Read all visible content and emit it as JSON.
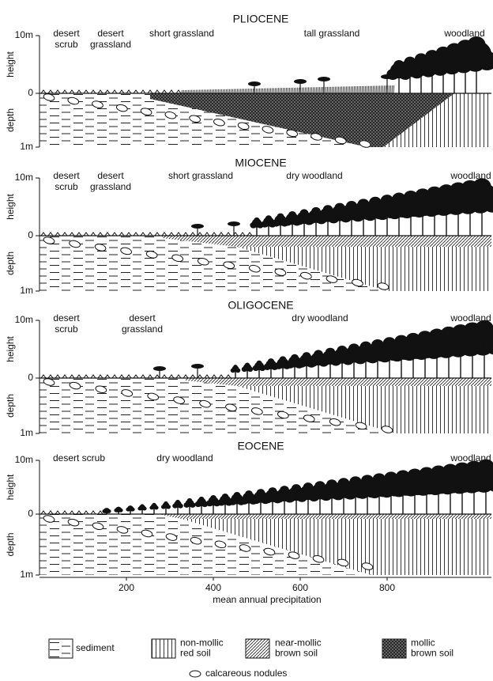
{
  "panels": [
    {
      "title": "PLIOCENE",
      "y_labels": {
        "top": "10m",
        "zero": "0",
        "bottom": "1m"
      },
      "axis_labels": {
        "upper": "height",
        "lower": "depth"
      },
      "vegetation": [
        [
          "desert",
          "scrub"
        ],
        [
          "desert",
          "grassland"
        ],
        [
          "short grassland"
        ],
        [
          "tall grassland"
        ],
        [
          "woodland"
        ]
      ]
    },
    {
      "title": "MIOCENE",
      "y_labels": {
        "top": "10m",
        "zero": "0",
        "bottom": "1m"
      },
      "axis_labels": {
        "upper": "height",
        "lower": "depth"
      },
      "vegetation": [
        [
          "desert",
          "scrub"
        ],
        [
          "desert",
          "grassland"
        ],
        [
          "short grassland"
        ],
        [
          "dry woodland"
        ],
        [
          "woodland"
        ]
      ]
    },
    {
      "title": "OLIGOCENE",
      "y_labels": {
        "top": "10m",
        "zero": "0",
        "bottom": "1m"
      },
      "axis_labels": {
        "upper": "height",
        "lower": "depth"
      },
      "vegetation": [
        [
          "desert",
          "scrub"
        ],
        [
          "desert",
          "grassland"
        ],
        [
          "dry woodland"
        ],
        [
          "woodland"
        ]
      ]
    },
    {
      "title": "EOCENE",
      "y_labels": {
        "top": "10m",
        "zero": "0",
        "bottom": "1m"
      },
      "axis_labels": {
        "upper": "height",
        "lower": "depth"
      },
      "vegetation": [
        [
          "desert scrub"
        ],
        [
          "dry woodland"
        ],
        [
          "woodland"
        ]
      ]
    }
  ],
  "x_axis": {
    "ticks": [
      "200",
      "400",
      "600",
      "800"
    ],
    "label": "mean annual precipitation"
  },
  "legend": {
    "items": [
      {
        "label": [
          "sediment"
        ]
      },
      {
        "label": [
          "non-mollic",
          "red soil"
        ]
      },
      {
        "label": [
          "near-mollic",
          "brown soil"
        ]
      },
      {
        "label": [
          "mollic",
          "brown soil"
        ]
      }
    ],
    "nodules": "calcareous nodules"
  }
}
